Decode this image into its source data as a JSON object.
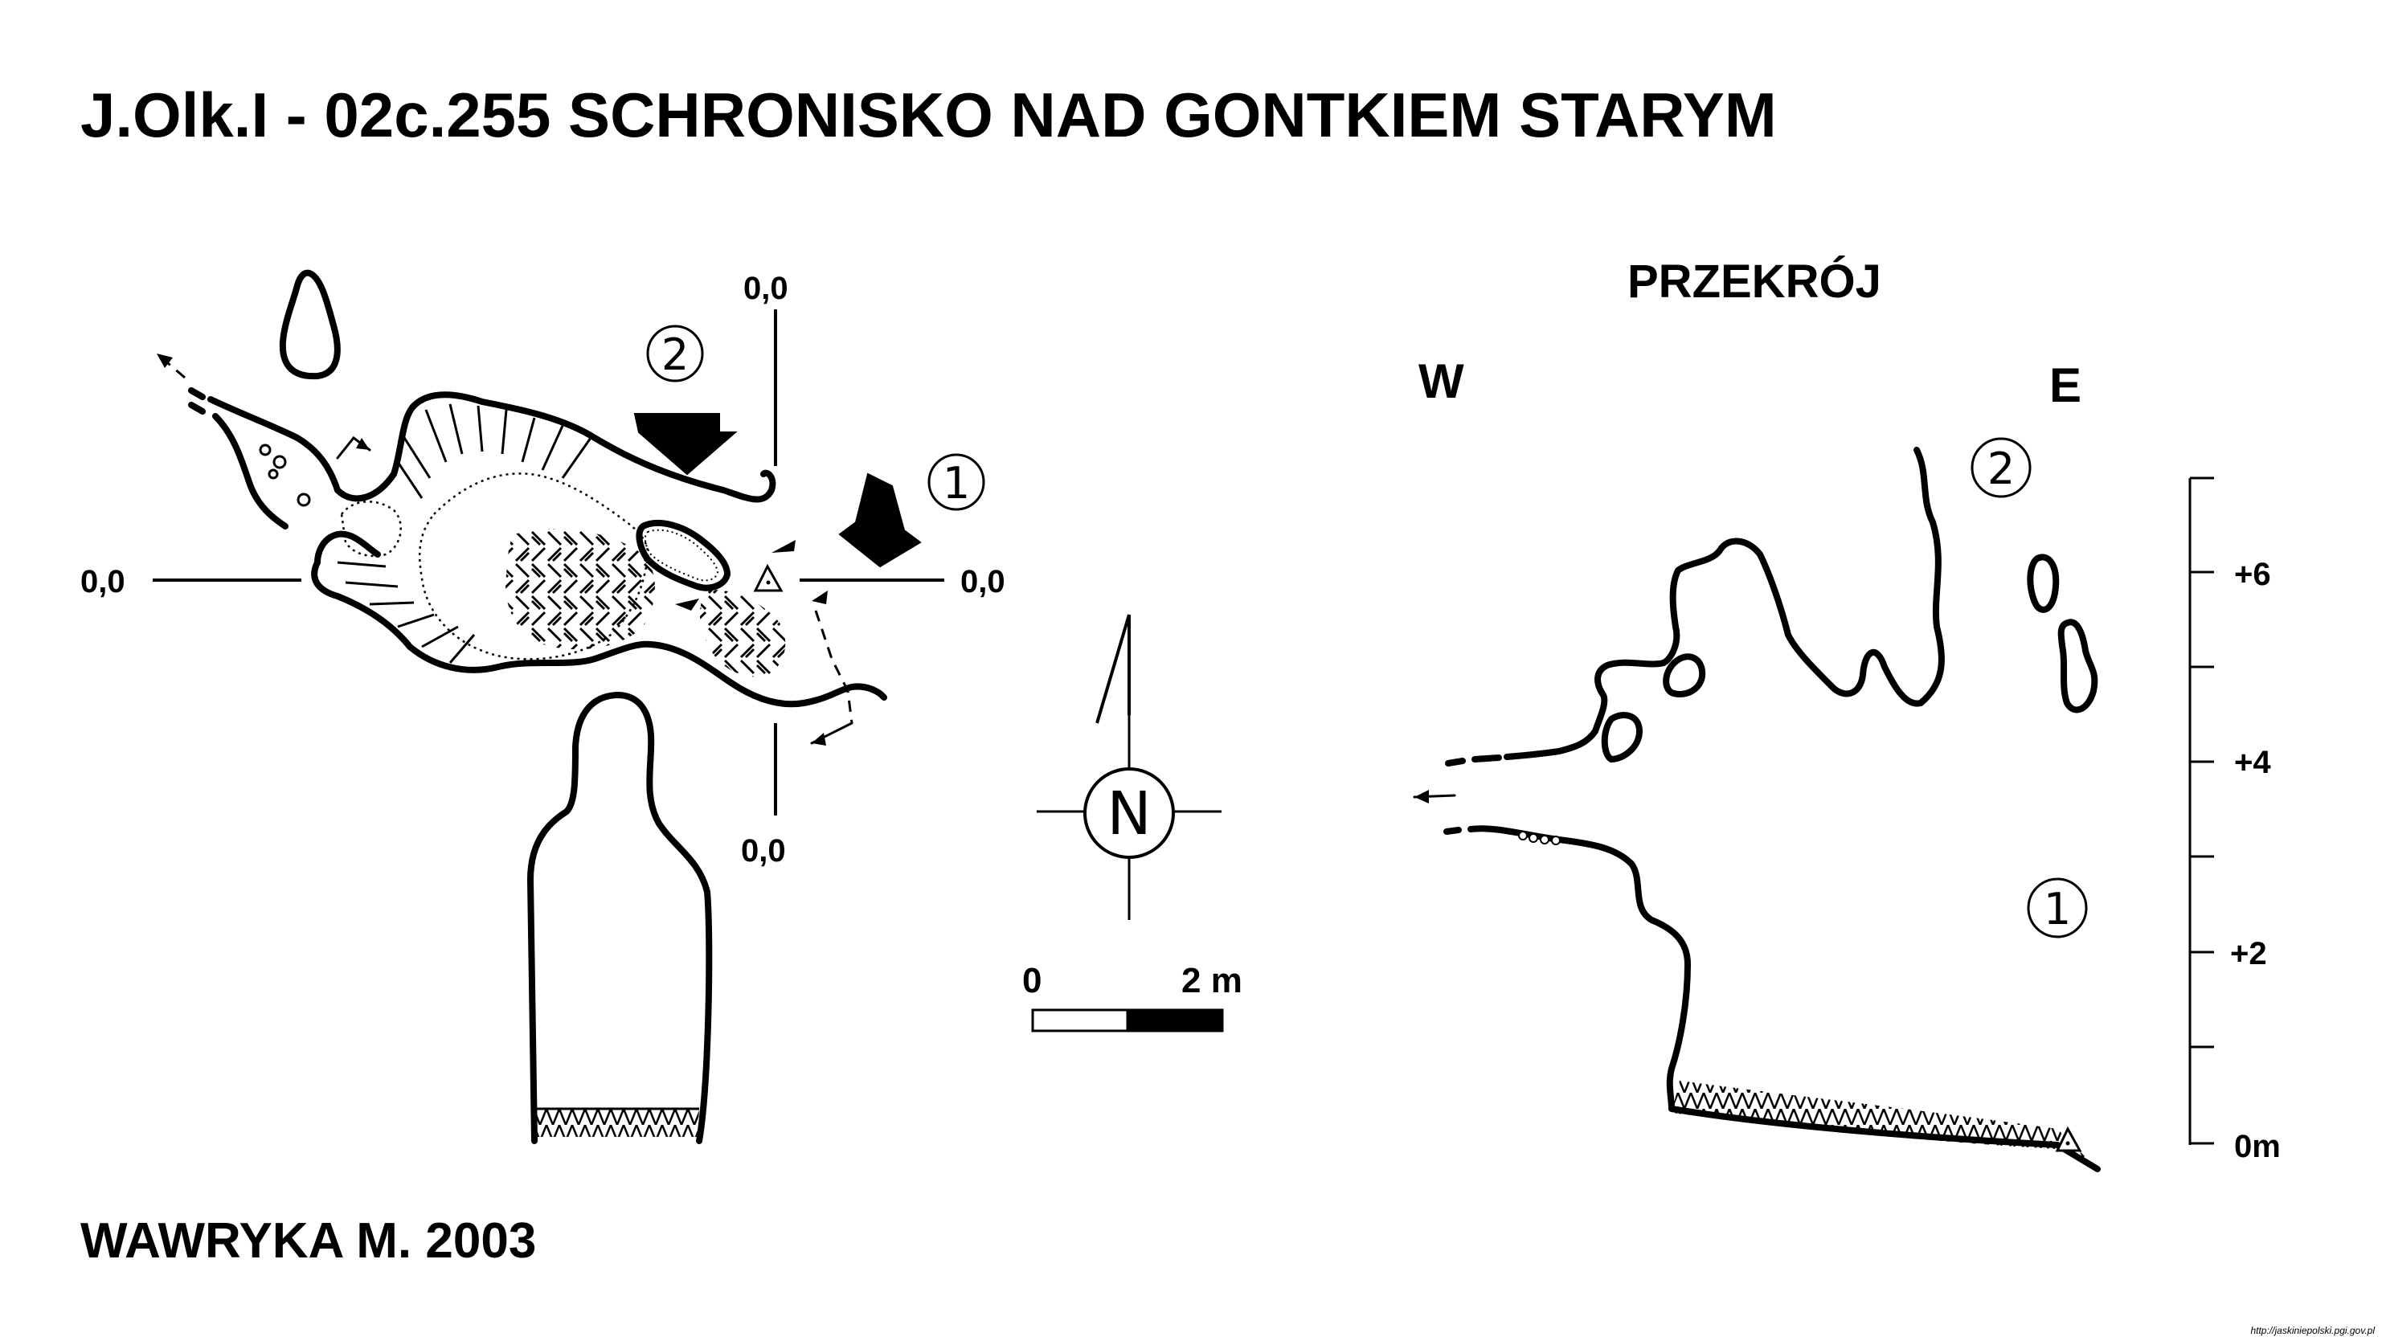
{
  "title": "J.Olk.I - 02c.255  SCHRONISKO NAD GONTKIEM STARYM",
  "plan": {
    "coord_top": "0,0",
    "coord_left": "0,0",
    "coord_right": "0,0",
    "coord_bottom": "0,0",
    "marker_1": "1",
    "marker_2": "2"
  },
  "north_arrow": {
    "letter": "N"
  },
  "scale_bar": {
    "start_label": "0",
    "end_label": "2 m"
  },
  "section": {
    "title": "PRZEKRÓJ",
    "west": "W",
    "east": "E",
    "marker_1": "1",
    "marker_2": "2",
    "axis_ticks": [
      "+6",
      "+4",
      "+2",
      "0m"
    ]
  },
  "author": "WAWRYKA M. 2003",
  "credit": "http://jaskiniepolski.pgi.gov.pl"
}
